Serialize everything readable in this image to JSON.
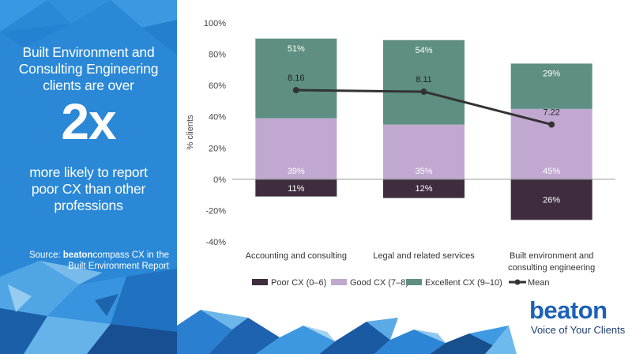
{
  "headline": {
    "lines_top": [
      "Built Environment and",
      "Consulting Engineering",
      "clients are over"
    ],
    "number": "2x",
    "lines_bottom": [
      "more likely to report",
      "poor CX than other",
      "professions"
    ]
  },
  "source": {
    "prefix": "Source: ",
    "brand_bold": "beaton",
    "rest_line1": "compass CX in the",
    "line2": "Built Environment Report"
  },
  "brand": {
    "name": "beaton",
    "tagline": "Voice of Your Clients"
  },
  "colors": {
    "panel_blue": "#2a88d6",
    "poor": "#3f2d3f",
    "good": "#c1a8d0",
    "excellent": "#5e8f82",
    "mean": "#333333",
    "brand_blue": "#1c61b8"
  },
  "chart_data": {
    "type": "bar",
    "stacked": true,
    "categories": [
      [
        "Accounting and consulting"
      ],
      [
        "Legal and related services"
      ],
      [
        "Built environment and",
        "consulting engineering"
      ]
    ],
    "series": [
      {
        "name": "Poor CX (0–6)",
        "values": [
          -11,
          -12,
          -26
        ],
        "labels": [
          "11%",
          "12%",
          "26%"
        ]
      },
      {
        "name": "Good CX (7–8)",
        "values": [
          39,
          35,
          45
        ],
        "labels": [
          "39%",
          "35%",
          "45%"
        ]
      },
      {
        "name": "Excellent CX (9–10)",
        "values": [
          51,
          54,
          29
        ],
        "labels": [
          "51%",
          "54%",
          "29%"
        ]
      }
    ],
    "mean": {
      "name": "Mean",
      "values": [
        8.16,
        8.11,
        7.22
      ],
      "labels": [
        "8.16",
        "8.11",
        "7.22"
      ],
      "plotted_at_pct": [
        57,
        56,
        35
      ]
    },
    "ylabel": "% clients",
    "xlabel": "",
    "ylim": [
      -40,
      100
    ],
    "yticks": [
      -40,
      -20,
      0,
      20,
      40,
      60,
      80,
      100
    ],
    "ytick_labels": [
      "-40%",
      "-20%",
      "0%",
      "20%",
      "40%",
      "60%",
      "80%",
      "100%"
    ],
    "grid": false,
    "legend": "bottom"
  }
}
